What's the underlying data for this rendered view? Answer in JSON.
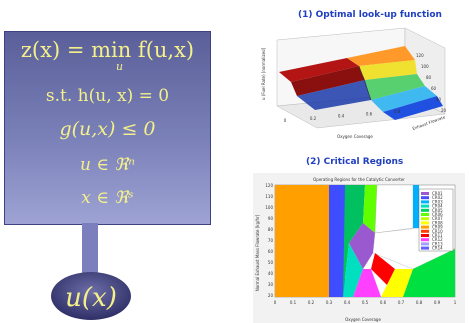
{
  "equations": {
    "objective": "z(x) = min f(u,x)",
    "objective_sub": "u",
    "constraint_eq": "s.t.  h(u, x) = 0",
    "constraint_ineq": "g(u,x) ≤ 0",
    "u_domain": "u ∈ ℜⁿ",
    "x_domain": "x ∈ ℜˢ",
    "output": "u(x)"
  },
  "plot1": {
    "title": "(1) Optimal look-up function",
    "zlabel": "u (Fuel Rate) [normalized]",
    "xlabel": "Oxygen Coverage",
    "ylabel": "Exhaust Flowrate",
    "x_ticks": [
      "0",
      "0.2",
      "0.4",
      "0.6",
      "0.8"
    ],
    "y_ticks": [
      "20",
      "40",
      "60",
      "80",
      "100",
      "120"
    ]
  },
  "plot2": {
    "title": "(2) Critical Regions",
    "inner_title": "Operating Regions for the Catalytic Converter",
    "xlabel": "Oxygen Coverage",
    "ylabel": "Normal Exhaust Mass Flowrate [kg/hr]",
    "x_ticks": [
      "0",
      "0.1",
      "0.2",
      "0.3",
      "0.4",
      "0.5",
      "0.6",
      "0.7",
      "0.8",
      "0.9",
      "1"
    ],
    "y_ticks": [
      "120",
      "110",
      "100",
      "90",
      "80",
      "70",
      "60",
      "50",
      "40",
      "30",
      "20"
    ],
    "legend": [
      "CR01",
      "CR02",
      "CR03",
      "CR04",
      "CR05",
      "CR06",
      "CR07",
      "CR08",
      "CR09",
      "CR10",
      "CR11",
      "CR12",
      "CR13",
      "CR14"
    ],
    "legend_colors": [
      "#9b59d0",
      "#4a4aff",
      "#00b0ff",
      "#00e0c0",
      "#00d060",
      "#60ff00",
      "#c0ff00",
      "#ffff00",
      "#ffa000",
      "#ff4000",
      "#ff0000",
      "#ff40ff",
      "#a0a0ff",
      "#6060ff"
    ]
  }
}
